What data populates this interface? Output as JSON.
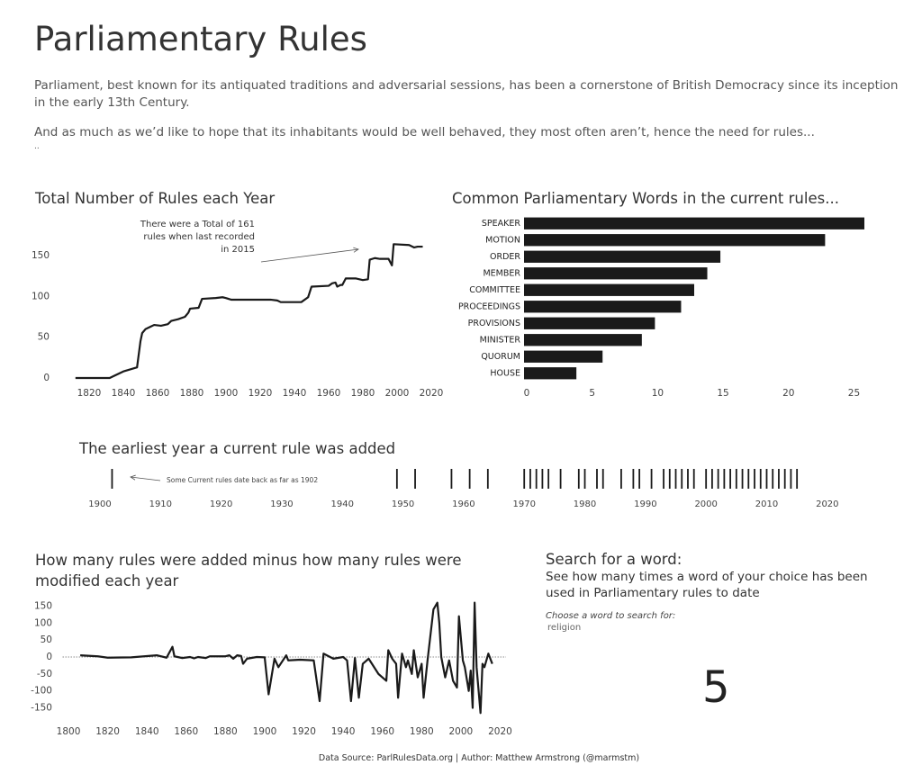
{
  "header": {
    "title": "Parliamentary Rules",
    "paragraphs": [
      "Parliament, best known for its antiquated traditions and adversarial sessions, has been a cornerstone of British Democracy since its inception in the early 13th Century.",
      "And as much as we’d like to hope that its inhabitants would be well behaved, they most often aren’t, hence the need for rules...",
      ".."
    ]
  },
  "chart_data": [
    {
      "type": "line",
      "title": "Total Number of Rules each Year",
      "color": "#1a1a1a",
      "annotation": [
        "There were a Total of 161",
        "rules when last recorded",
        "in 2015"
      ],
      "x": [
        1812,
        1832,
        1840,
        1848,
        1850,
        1851,
        1853,
        1856,
        1858,
        1862,
        1866,
        1868,
        1872,
        1876,
        1878,
        1879,
        1884,
        1886,
        1894,
        1898,
        1900,
        1903,
        1915,
        1926,
        1930,
        1932,
        1944,
        1948,
        1950,
        1960,
        1962,
        1964,
        1965,
        1967,
        1968,
        1970,
        1976,
        1980,
        1983,
        1984,
        1987,
        1990,
        1995,
        1997,
        1998,
        2007,
        2010,
        2012,
        2015
      ],
      "values": [
        0,
        0,
        8,
        13,
        45,
        55,
        60,
        63,
        65,
        64,
        66,
        70,
        72,
        75,
        80,
        85,
        86,
        97,
        98,
        99,
        98,
        96,
        96,
        96,
        95,
        93,
        93,
        99,
        112,
        113,
        116,
        117,
        112,
        114,
        114,
        122,
        122,
        120,
        121,
        145,
        147,
        146,
        146,
        138,
        164,
        163,
        160,
        161,
        161
      ],
      "xlim": [
        1805,
        2025
      ],
      "ylim": [
        -5,
        170
      ],
      "xticks": [
        1820,
        1840,
        1860,
        1880,
        1900,
        1920,
        1940,
        1960,
        1980,
        2000,
        2020
      ],
      "yticks": [
        0,
        50,
        100,
        150
      ]
    },
    {
      "type": "bar",
      "orientation": "horizontal",
      "title": "Common Parliamentary Words in the current rules...",
      "color": "#1a1a1a",
      "categories": [
        "SPEAKER",
        "MOTION",
        "ORDER",
        "MEMBER",
        "COMMITTEE",
        "PROCEEDINGS",
        "PROVISIONS",
        "MINISTER",
        "QUORUM",
        "HOUSE"
      ],
      "values": [
        26,
        23,
        15,
        14,
        13,
        12,
        10,
        9,
        6,
        4
      ],
      "xlim": [
        0,
        26
      ],
      "xticks": [
        0,
        5,
        10,
        15,
        20,
        25
      ]
    },
    {
      "type": "strip",
      "title": "The earliest year a current rule was added",
      "color": "#1a1a1a",
      "annotation": "Some Current rules date back as far as 1902",
      "x": [
        1902,
        1949,
        1952,
        1958,
        1961,
        1964,
        1970,
        1971,
        1972,
        1973,
        1974,
        1976,
        1979,
        1980,
        1982,
        1983,
        1986,
        1988,
        1989,
        1991,
        1993,
        1994,
        1995,
        1996,
        1997,
        1998,
        2000,
        2001,
        2002,
        2003,
        2004,
        2005,
        2006,
        2007,
        2008,
        2009,
        2010,
        2011,
        2012,
        2013,
        2014,
        2015
      ],
      "xlim": [
        1897,
        2023
      ],
      "xticks": [
        1900,
        1910,
        1920,
        1930,
        1940,
        1950,
        1960,
        1970,
        1980,
        1990,
        2000,
        2010,
        2020
      ]
    },
    {
      "type": "line",
      "title": "How many rules were added minus how many rules were modified each year",
      "color": "#1a1a1a",
      "zero_line": true,
      "x": [
        1806,
        1815,
        1820,
        1832,
        1845,
        1850,
        1853,
        1854,
        1858,
        1862,
        1864,
        1866,
        1870,
        1872,
        1880,
        1882,
        1884,
        1886,
        1888,
        1889,
        1891,
        1896,
        1900,
        1902,
        1905,
        1907,
        1911,
        1912,
        1918,
        1925,
        1928,
        1930,
        1935,
        1940,
        1942,
        1944,
        1946,
        1948,
        1950,
        1953,
        1958,
        1962,
        1963,
        1965,
        1967,
        1968,
        1970,
        1972,
        1973,
        1975,
        1976,
        1978,
        1980,
        1981,
        1983,
        1986,
        1988,
        1989,
        1990,
        1992,
        1994,
        1996,
        1998,
        1999,
        2001,
        2002,
        2004,
        2005,
        2006,
        2007,
        2008,
        2010,
        2011,
        2012,
        2014,
        2016
      ],
      "values": [
        5,
        2,
        -2,
        -1,
        5,
        -2,
        30,
        2,
        -3,
        0,
        -4,
        0,
        -3,
        2,
        2,
        5,
        -5,
        5,
        3,
        -20,
        -5,
        0,
        -1,
        -110,
        -5,
        -30,
        5,
        -10,
        -8,
        -10,
        -130,
        10,
        -5,
        0,
        -10,
        -130,
        -3,
        -120,
        -20,
        -5,
        -50,
        -70,
        20,
        -5,
        -20,
        -120,
        10,
        -30,
        -10,
        -50,
        20,
        -60,
        -20,
        -120,
        -10,
        140,
        160,
        100,
        0,
        -60,
        -10,
        -70,
        -90,
        120,
        -10,
        -30,
        -100,
        -40,
        -150,
        160,
        -30,
        -165,
        -20,
        -30,
        10,
        -20
      ],
      "xlim": [
        1797,
        2023
      ],
      "ylim": [
        -175,
        175
      ],
      "xticks": [
        1800,
        1820,
        1840,
        1860,
        1880,
        1900,
        1920,
        1940,
        1960,
        1980,
        2000,
        2020
      ],
      "yticks": [
        -150,
        -100,
        -50,
        0,
        50,
        100,
        150
      ]
    }
  ],
  "search": {
    "title": "Search for a word:",
    "description": "See how many times a word of your choice has been used in Parliamentary rules to date",
    "prompt": "Choose a word to search for:",
    "query": "religion",
    "result": 5
  },
  "footer": "Data Source: ParlRulesData.org | Author: Matthew Armstrong (@marmstm)"
}
